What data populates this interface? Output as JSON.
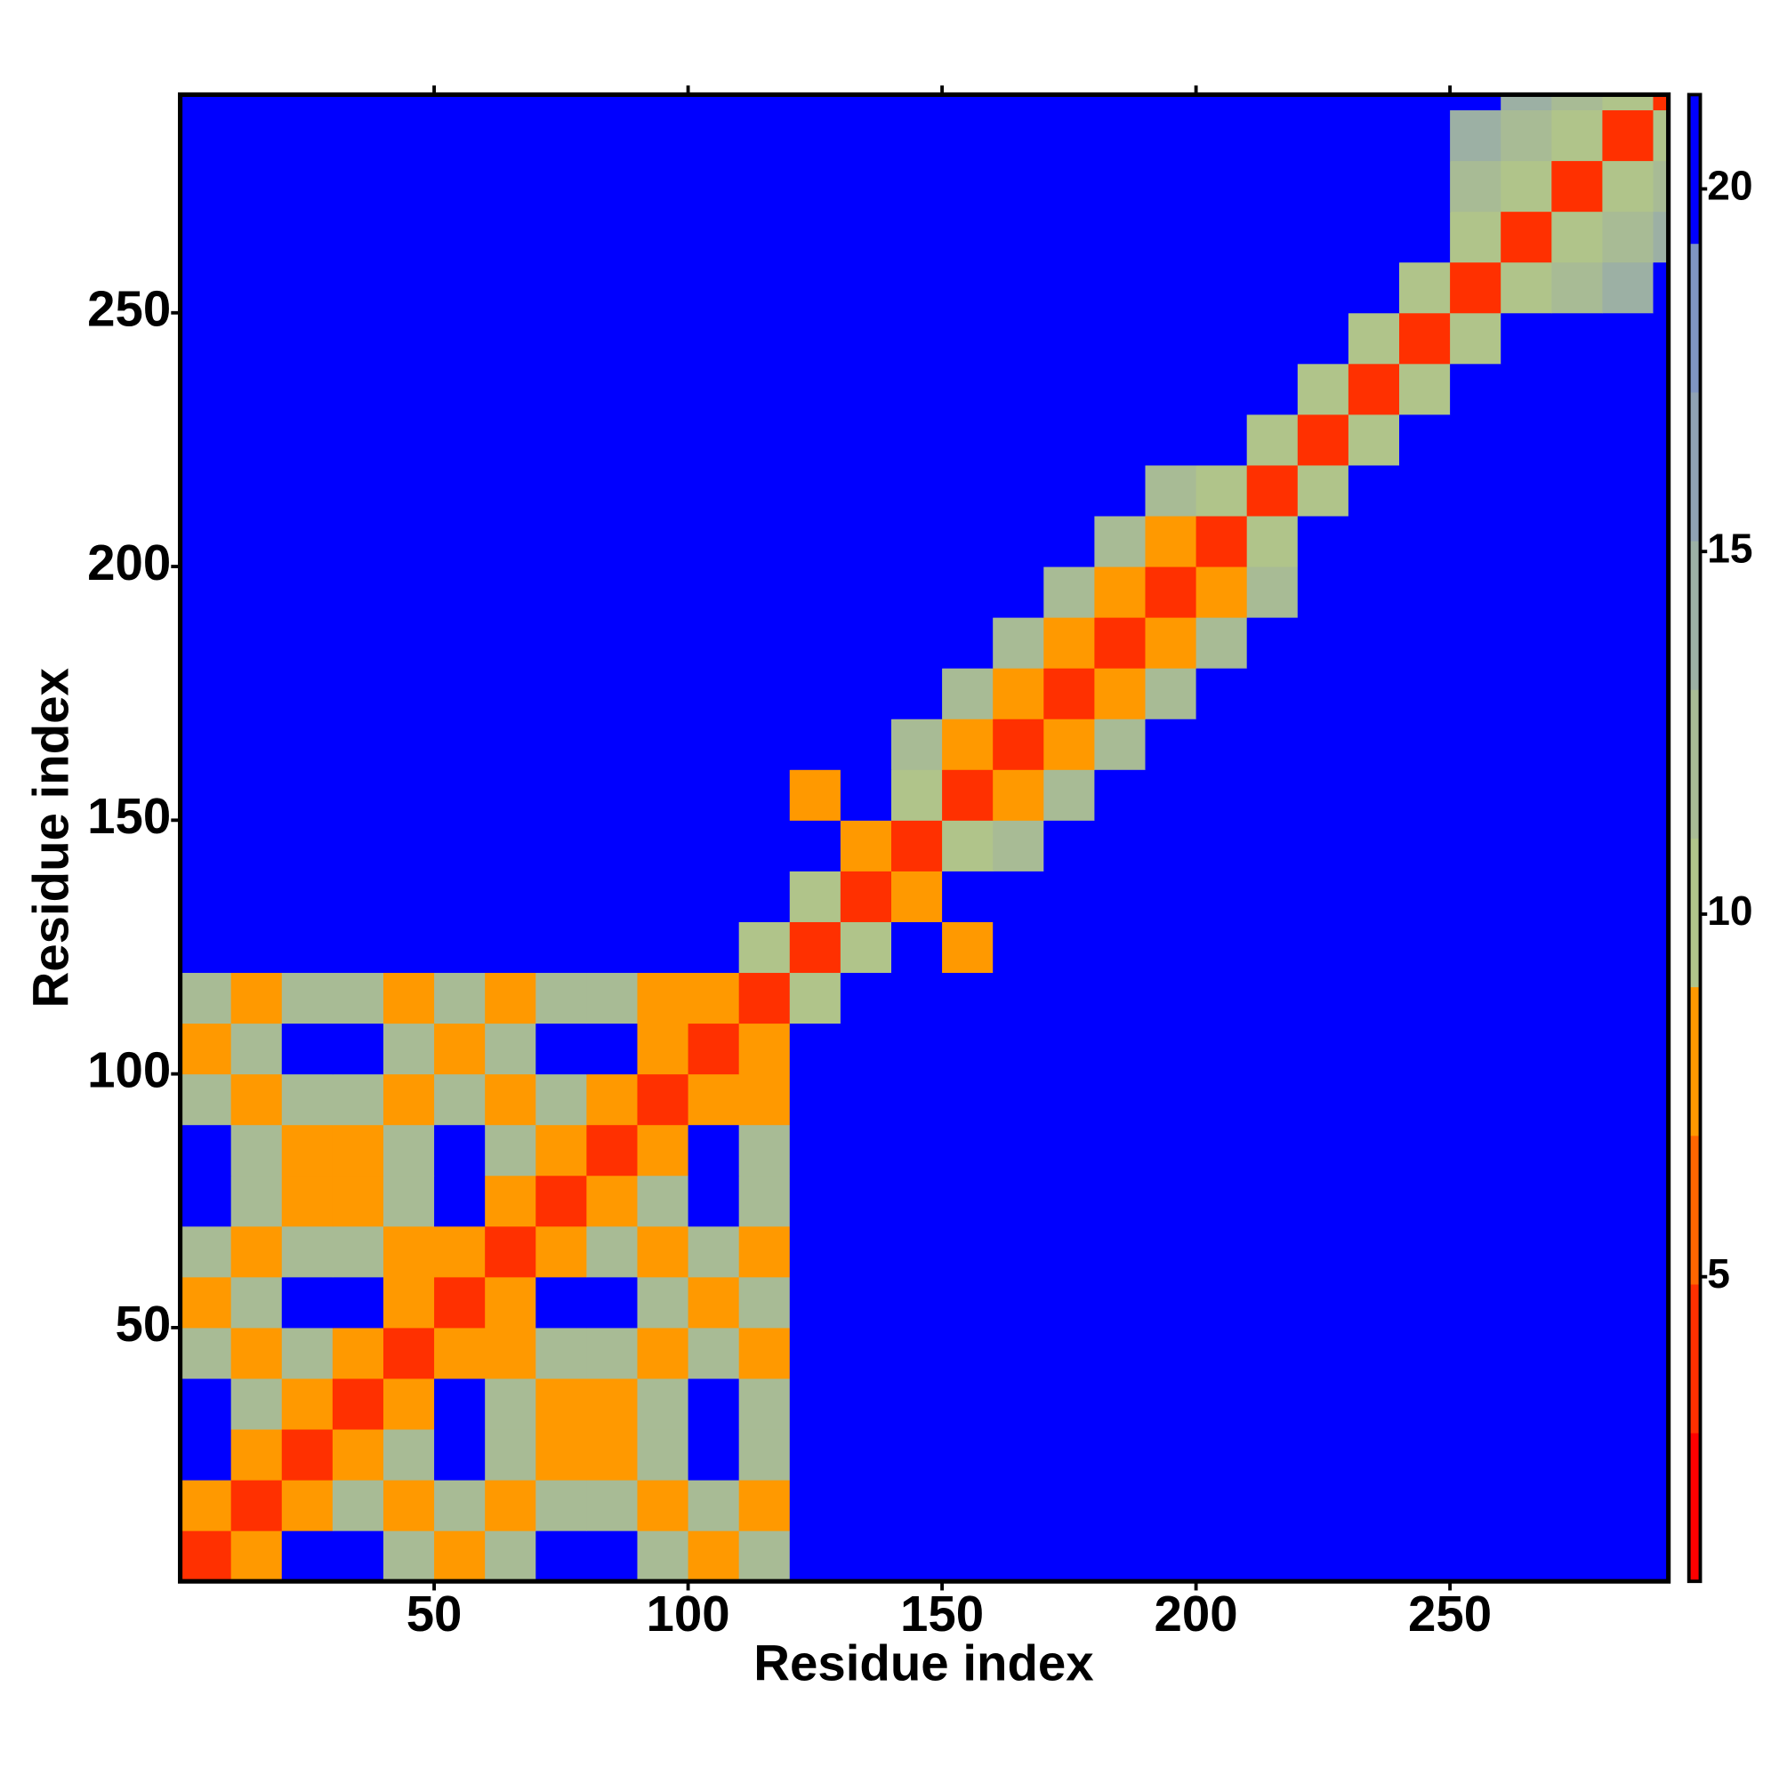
{
  "chart_data": {
    "type": "heatmap",
    "xlabel": "Residue index",
    "ylabel": "Residue index",
    "xlim": [
      0,
      293
    ],
    "ylim": [
      0,
      293
    ],
    "xticks": [
      50,
      100,
      150,
      200,
      250
    ],
    "yticks": [
      50,
      100,
      150,
      200,
      250
    ],
    "bins": [
      0,
      10,
      20,
      30,
      40,
      50,
      60,
      70,
      80,
      90,
      100,
      110,
      120,
      130,
      140,
      150,
      160,
      170,
      180,
      190,
      200,
      210,
      220,
      230,
      240,
      250,
      260,
      270,
      280,
      290,
      293
    ],
    "values": [
      [
        3,
        8,
        21,
        21,
        12,
        7,
        12,
        21,
        21,
        12,
        7,
        12,
        21,
        21,
        21,
        21,
        21,
        21,
        21,
        21,
        21,
        21,
        21,
        21,
        21,
        21,
        21,
        21,
        21,
        21
      ],
      [
        8,
        3,
        8,
        12,
        7,
        12,
        7,
        12,
        12,
        7,
        12,
        7,
        21,
        21,
        21,
        21,
        21,
        21,
        21,
        21,
        21,
        21,
        21,
        21,
        21,
        21,
        21,
        21,
        21,
        21
      ],
      [
        21,
        8,
        3,
        8,
        12,
        21,
        12,
        7,
        7,
        12,
        21,
        12,
        21,
        21,
        21,
        21,
        21,
        21,
        21,
        21,
        21,
        21,
        21,
        21,
        21,
        21,
        21,
        21,
        21,
        21
      ],
      [
        21,
        12,
        8,
        3,
        8,
        21,
        12,
        7,
        7,
        12,
        21,
        12,
        21,
        21,
        21,
        21,
        21,
        21,
        21,
        21,
        21,
        21,
        21,
        21,
        21,
        21,
        21,
        21,
        21,
        21
      ],
      [
        12,
        7,
        12,
        8,
        3,
        8,
        7,
        12,
        12,
        7,
        12,
        7,
        21,
        21,
        21,
        21,
        21,
        21,
        21,
        21,
        21,
        21,
        21,
        21,
        21,
        21,
        21,
        21,
        21,
        21
      ],
      [
        7,
        12,
        21,
        21,
        8,
        3,
        8,
        21,
        21,
        12,
        7,
        12,
        21,
        21,
        21,
        21,
        21,
        21,
        21,
        21,
        21,
        21,
        21,
        21,
        21,
        21,
        21,
        21,
        21,
        21
      ],
      [
        12,
        7,
        12,
        12,
        7,
        8,
        3,
        8,
        12,
        7,
        12,
        7,
        21,
        21,
        21,
        21,
        21,
        21,
        21,
        21,
        21,
        21,
        21,
        21,
        21,
        21,
        21,
        21,
        21,
        21
      ],
      [
        21,
        12,
        7,
        7,
        12,
        21,
        8,
        3,
        8,
        12,
        21,
        12,
        21,
        21,
        21,
        21,
        21,
        21,
        21,
        21,
        21,
        21,
        21,
        21,
        21,
        21,
        21,
        21,
        21,
        21
      ],
      [
        21,
        12,
        7,
        7,
        12,
        21,
        12,
        8,
        3,
        8,
        21,
        12,
        21,
        21,
        21,
        21,
        21,
        21,
        21,
        21,
        21,
        21,
        21,
        21,
        21,
        21,
        21,
        21,
        21,
        21
      ],
      [
        12,
        7,
        12,
        12,
        7,
        12,
        7,
        12,
        8,
        3,
        8,
        7,
        21,
        21,
        21,
        21,
        21,
        21,
        21,
        21,
        21,
        21,
        21,
        21,
        21,
        21,
        21,
        21,
        21,
        21
      ],
      [
        7,
        12,
        21,
        21,
        12,
        7,
        12,
        21,
        21,
        8,
        3,
        8,
        21,
        21,
        21,
        21,
        21,
        21,
        21,
        21,
        21,
        21,
        21,
        21,
        21,
        21,
        21,
        21,
        21,
        21
      ],
      [
        12,
        7,
        12,
        12,
        7,
        12,
        7,
        12,
        12,
        7,
        8,
        3,
        10,
        21,
        21,
        21,
        21,
        21,
        21,
        21,
        21,
        21,
        21,
        21,
        21,
        21,
        21,
        21,
        21,
        21
      ],
      [
        21,
        21,
        21,
        21,
        21,
        21,
        21,
        21,
        21,
        21,
        21,
        10,
        3,
        10,
        21,
        7,
        21,
        21,
        21,
        21,
        21,
        21,
        21,
        21,
        21,
        21,
        21,
        21,
        21,
        21
      ],
      [
        21,
        21,
        21,
        21,
        21,
        21,
        21,
        21,
        21,
        21,
        21,
        21,
        10,
        3,
        7,
        21,
        21,
        21,
        21,
        21,
        21,
        21,
        21,
        21,
        21,
        21,
        21,
        21,
        21,
        21
      ],
      [
        21,
        21,
        21,
        21,
        21,
        21,
        21,
        21,
        21,
        21,
        21,
        21,
        21,
        7,
        3,
        10,
        13,
        21,
        21,
        21,
        21,
        21,
        21,
        21,
        21,
        21,
        21,
        21,
        21,
        21
      ],
      [
        21,
        21,
        21,
        21,
        21,
        21,
        21,
        21,
        21,
        21,
        21,
        21,
        7,
        21,
        10,
        3,
        8,
        13,
        21,
        21,
        21,
        21,
        21,
        21,
        21,
        21,
        21,
        21,
        21,
        21
      ],
      [
        21,
        21,
        21,
        21,
        21,
        21,
        21,
        21,
        21,
        21,
        21,
        21,
        21,
        21,
        13,
        8,
        3,
        8,
        13,
        21,
        21,
        21,
        21,
        21,
        21,
        21,
        21,
        21,
        21,
        21
      ],
      [
        21,
        21,
        21,
        21,
        21,
        21,
        21,
        21,
        21,
        21,
        21,
        21,
        21,
        21,
        21,
        13,
        8,
        3,
        8,
        13,
        21,
        21,
        21,
        21,
        21,
        21,
        21,
        21,
        21,
        21
      ],
      [
        21,
        21,
        21,
        21,
        21,
        21,
        21,
        21,
        21,
        21,
        21,
        21,
        21,
        21,
        21,
        21,
        13,
        8,
        3,
        8,
        13,
        21,
        21,
        21,
        21,
        21,
        21,
        21,
        21,
        21
      ],
      [
        21,
        21,
        21,
        21,
        21,
        21,
        21,
        21,
        21,
        21,
        21,
        21,
        21,
        21,
        21,
        21,
        21,
        13,
        8,
        3,
        8,
        13,
        21,
        21,
        21,
        21,
        21,
        21,
        21,
        21
      ],
      [
        21,
        21,
        21,
        21,
        21,
        21,
        21,
        21,
        21,
        21,
        21,
        21,
        21,
        21,
        21,
        21,
        21,
        21,
        13,
        8,
        3,
        10,
        21,
        21,
        21,
        21,
        21,
        21,
        21,
        21
      ],
      [
        21,
        21,
        21,
        21,
        21,
        21,
        21,
        21,
        21,
        21,
        21,
        21,
        21,
        21,
        21,
        21,
        21,
        21,
        21,
        13,
        10,
        3,
        10,
        21,
        21,
        21,
        21,
        21,
        21,
        21
      ],
      [
        21,
        21,
        21,
        21,
        21,
        21,
        21,
        21,
        21,
        21,
        21,
        21,
        21,
        21,
        21,
        21,
        21,
        21,
        21,
        21,
        21,
        10,
        3,
        10,
        21,
        21,
        21,
        21,
        21,
        21
      ],
      [
        21,
        21,
        21,
        21,
        21,
        21,
        21,
        21,
        21,
        21,
        21,
        21,
        21,
        21,
        21,
        21,
        21,
        21,
        21,
        21,
        21,
        21,
        10,
        3,
        10,
        21,
        21,
        21,
        21,
        21
      ],
      [
        21,
        21,
        21,
        21,
        21,
        21,
        21,
        21,
        21,
        21,
        21,
        21,
        21,
        21,
        21,
        21,
        21,
        21,
        21,
        21,
        21,
        21,
        21,
        10,
        3,
        10,
        21,
        21,
        21,
        21
      ],
      [
        21,
        21,
        21,
        21,
        21,
        21,
        21,
        21,
        21,
        21,
        21,
        21,
        21,
        21,
        21,
        21,
        21,
        21,
        21,
        21,
        21,
        21,
        21,
        21,
        10,
        3,
        10,
        13,
        15,
        21
      ],
      [
        21,
        21,
        21,
        21,
        21,
        21,
        21,
        21,
        21,
        21,
        21,
        21,
        21,
        21,
        21,
        21,
        21,
        21,
        21,
        21,
        21,
        21,
        21,
        21,
        21,
        10,
        3,
        10,
        13,
        15
      ],
      [
        21,
        21,
        21,
        21,
        21,
        21,
        21,
        21,
        21,
        21,
        21,
        21,
        21,
        21,
        21,
        21,
        21,
        21,
        21,
        21,
        21,
        21,
        21,
        21,
        21,
        13,
        10,
        3,
        10,
        13
      ],
      [
        21,
        21,
        21,
        21,
        21,
        21,
        21,
        21,
        21,
        21,
        21,
        21,
        21,
        21,
        21,
        21,
        21,
        21,
        21,
        21,
        21,
        21,
        21,
        21,
        21,
        15,
        13,
        10,
        3,
        10
      ],
      [
        21,
        21,
        21,
        21,
        21,
        21,
        21,
        21,
        21,
        21,
        21,
        21,
        21,
        21,
        21,
        21,
        21,
        21,
        21,
        21,
        21,
        21,
        21,
        21,
        21,
        21,
        15,
        13,
        10,
        3
      ]
    ],
    "colorbar": {
      "lim": [
        0.8,
        21.3
      ],
      "ticks": [
        5,
        10,
        15,
        20
      ],
      "colors": [
        "#ff0000",
        "#ff3000",
        "#ff6600",
        "#ff9900",
        "#b0c48a",
        "#a8bb95",
        "#9cb0a4",
        "#8fa2b3",
        "#7f95c2",
        "#0000ff"
      ]
    }
  }
}
